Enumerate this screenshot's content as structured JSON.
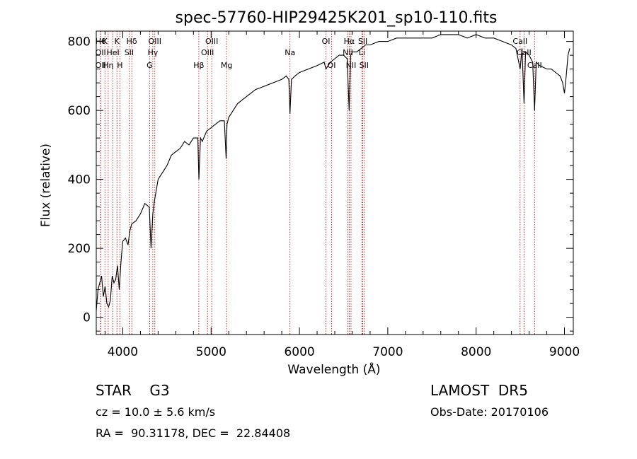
{
  "chart_data": {
    "type": "line",
    "title": "spec-57760-HIP29425K201_sp10-110.fits",
    "xlabel": "Wavelength (Å)",
    "ylabel": "Flux (relative)",
    "xlim": [
      3700,
      9100
    ],
    "ylim": [
      -50,
      830
    ],
    "x_ticks": [
      4000,
      5000,
      6000,
      7000,
      8000,
      9000
    ],
    "x_tick_labels": [
      "4000",
      "5000",
      "6000",
      "7000",
      "8000",
      "9000"
    ],
    "y_ticks": [
      0,
      200,
      400,
      600,
      800
    ],
    "y_tick_labels": [
      "0",
      "200",
      "400",
      "600",
      "800"
    ],
    "grid": false,
    "series": [
      {
        "x": [
          3700,
          3720,
          3740,
          3760,
          3780,
          3800,
          3820,
          3840,
          3860,
          3880,
          3900,
          3920,
          3940,
          3960,
          3980,
          4000,
          4030,
          4060,
          4080,
          4100,
          4150,
          4200,
          4250,
          4300,
          4320,
          4340,
          4360,
          4400,
          4450,
          4500,
          4550,
          4600,
          4650,
          4700,
          4750,
          4800,
          4850,
          4862,
          4880,
          4900,
          4950,
          5000,
          5050,
          5100,
          5150,
          5170,
          5180,
          5200,
          5250,
          5300,
          5400,
          5500,
          5600,
          5700,
          5800,
          5850,
          5880,
          5893,
          5910,
          5950,
          6000,
          6100,
          6200,
          6280,
          6300,
          6350,
          6400,
          6450,
          6500,
          6540,
          6563,
          6580,
          6600,
          6650,
          6700,
          6750,
          6800,
          6900,
          7000,
          7100,
          7200,
          7300,
          7400,
          7500,
          7600,
          7700,
          7800,
          7900,
          8000,
          8100,
          8200,
          8300,
          8400,
          8450,
          8498,
          8520,
          8542,
          8560,
          8600,
          8640,
          8662,
          8680,
          8720,
          8800,
          8850,
          8900,
          8950,
          8980,
          9000,
          9020,
          9040,
          9060
        ],
        "y": [
          20,
          80,
          100,
          120,
          60,
          90,
          40,
          30,
          50,
          120,
          100,
          110,
          150,
          80,
          160,
          220,
          230,
          210,
          250,
          270,
          280,
          300,
          330,
          320,
          200,
          300,
          340,
          400,
          420,
          440,
          470,
          480,
          490,
          510,
          500,
          520,
          520,
          400,
          520,
          510,
          540,
          550,
          560,
          570,
          570,
          460,
          560,
          580,
          600,
          620,
          640,
          660,
          670,
          680,
          690,
          700,
          690,
          590,
          690,
          700,
          710,
          720,
          730,
          740,
          720,
          740,
          750,
          760,
          760,
          750,
          600,
          760,
          770,
          770,
          780,
          790,
          790,
          800,
          800,
          810,
          810,
          810,
          810,
          810,
          820,
          820,
          820,
          810,
          820,
          810,
          810,
          800,
          790,
          780,
          720,
          780,
          620,
          770,
          760,
          740,
          600,
          740,
          730,
          720,
          720,
          710,
          700,
          680,
          650,
          700,
          760,
          780
        ]
      }
    ],
    "lines": [
      {
        "x": 3750,
        "label": "Hθ",
        "row": 1
      },
      {
        "x": 3750,
        "label": "OII",
        "row": 2
      },
      {
        "x": 3750,
        "label": "OII",
        "row": 3
      },
      {
        "x": 3798,
        "label": "K",
        "row": 1
      },
      {
        "x": 3835,
        "label": "Hη",
        "row": 3
      },
      {
        "x": 3889,
        "label": "HeI",
        "row": 2
      },
      {
        "x": 3934,
        "label": "K",
        "row": 1
      },
      {
        "x": 3968,
        "label": "H",
        "row": 3
      },
      {
        "x": 4072,
        "label": "SII",
        "row": 2
      },
      {
        "x": 4102,
        "label": "Hδ",
        "row": 1
      },
      {
        "x": 4304,
        "label": "G",
        "row": 3
      },
      {
        "x": 4340,
        "label": "Hγ",
        "row": 2
      },
      {
        "x": 4363,
        "label": "OIII",
        "row": 1
      },
      {
        "x": 4861,
        "label": "Hβ",
        "row": 3
      },
      {
        "x": 4959,
        "label": "OIII",
        "row": 2
      },
      {
        "x": 5007,
        "label": "OIII",
        "row": 1
      },
      {
        "x": 5175,
        "label": "Mg",
        "row": 3
      },
      {
        "x": 5893,
        "label": "Na",
        "row": 2
      },
      {
        "x": 6300,
        "label": "OI",
        "row": 1
      },
      {
        "x": 6364,
        "label": "OI",
        "row": 3
      },
      {
        "x": 6548,
        "label": "NII",
        "row": 2
      },
      {
        "x": 6563,
        "label": "Hα",
        "row": 1
      },
      {
        "x": 6584,
        "label": "NII",
        "row": 3
      },
      {
        "x": 6707,
        "label": "Li",
        "row": 2
      },
      {
        "x": 6717,
        "label": "SII",
        "row": 1
      },
      {
        "x": 6731,
        "label": "SII",
        "row": 3
      },
      {
        "x": 8498,
        "label": "CaII",
        "row": 1
      },
      {
        "x": 8542,
        "label": "CaII",
        "row": 2
      },
      {
        "x": 8662,
        "label": "CaII",
        "row": 3
      }
    ],
    "line_color": "#cc0000",
    "spectrum_color": "#000000"
  },
  "footer": {
    "object": "STAR    G3",
    "survey": "LAMOST  DR5",
    "cz": "cz = 10.0 ± 5.6 km/s",
    "obs_date": "Obs-Date: 20170106",
    "coords": "RA =  90.31178, DEC =  22.84408"
  }
}
